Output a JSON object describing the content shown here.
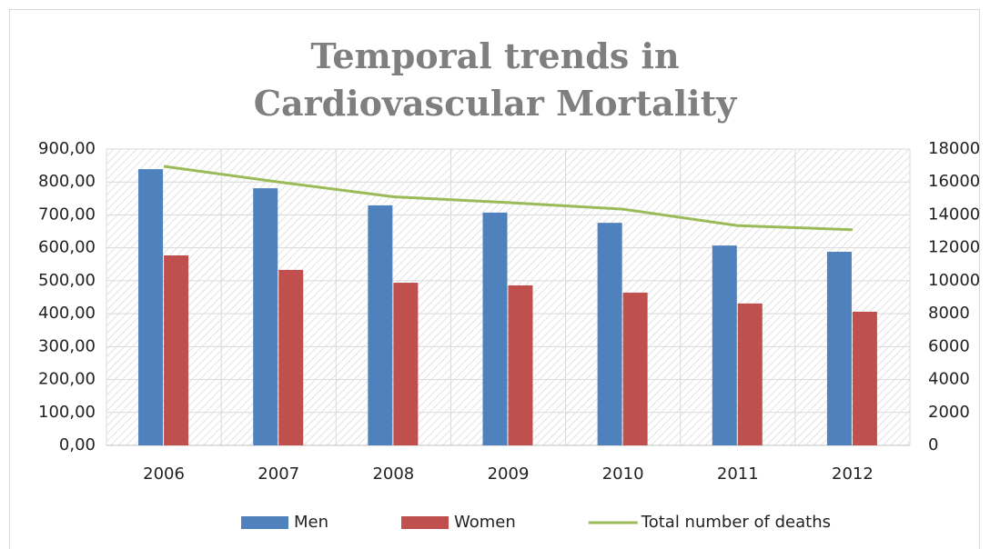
{
  "chart_data": {
    "type": "bar_line",
    "title": "Temporal trends in Cardiovascular Mortality",
    "categories": [
      "2006",
      "2007",
      "2008",
      "2009",
      "2010",
      "2011",
      "2012"
    ],
    "series": [
      {
        "name": "Men",
        "color": "#4f81bd",
        "type": "bar",
        "values": [
          839,
          781,
          729,
          707,
          676,
          607,
          588
        ]
      },
      {
        "name": "Women",
        "color": "#c0504d",
        "type": "bar",
        "values": [
          577,
          533,
          494,
          486,
          464,
          431,
          406
        ]
      },
      {
        "name": "Total number of deaths",
        "color": "#9bbb59",
        "type": "line",
        "axis": "y2",
        "values": [
          16950,
          16000,
          15100,
          14750,
          14350,
          13350,
          13100
        ]
      }
    ],
    "ylim": [
      0,
      900
    ],
    "yticks": [
      {
        "value": 0,
        "label": "0,00"
      },
      {
        "value": 100,
        "label": "100,00"
      },
      {
        "value": 200,
        "label": "200,00"
      },
      {
        "value": 300,
        "label": "300,00"
      },
      {
        "value": 400,
        "label": "400,00"
      },
      {
        "value": 500,
        "label": "500,00"
      },
      {
        "value": 600,
        "label": "600,00"
      },
      {
        "value": 700,
        "label": "700,00"
      },
      {
        "value": 800,
        "label": "800,00"
      },
      {
        "value": 900,
        "label": "900,00"
      }
    ],
    "y2lim": [
      0,
      18000
    ],
    "y2ticks": [
      0,
      2000,
      4000,
      6000,
      8000,
      10000,
      12000,
      14000,
      16000,
      18000
    ],
    "grid": true,
    "legend": "bottom"
  }
}
